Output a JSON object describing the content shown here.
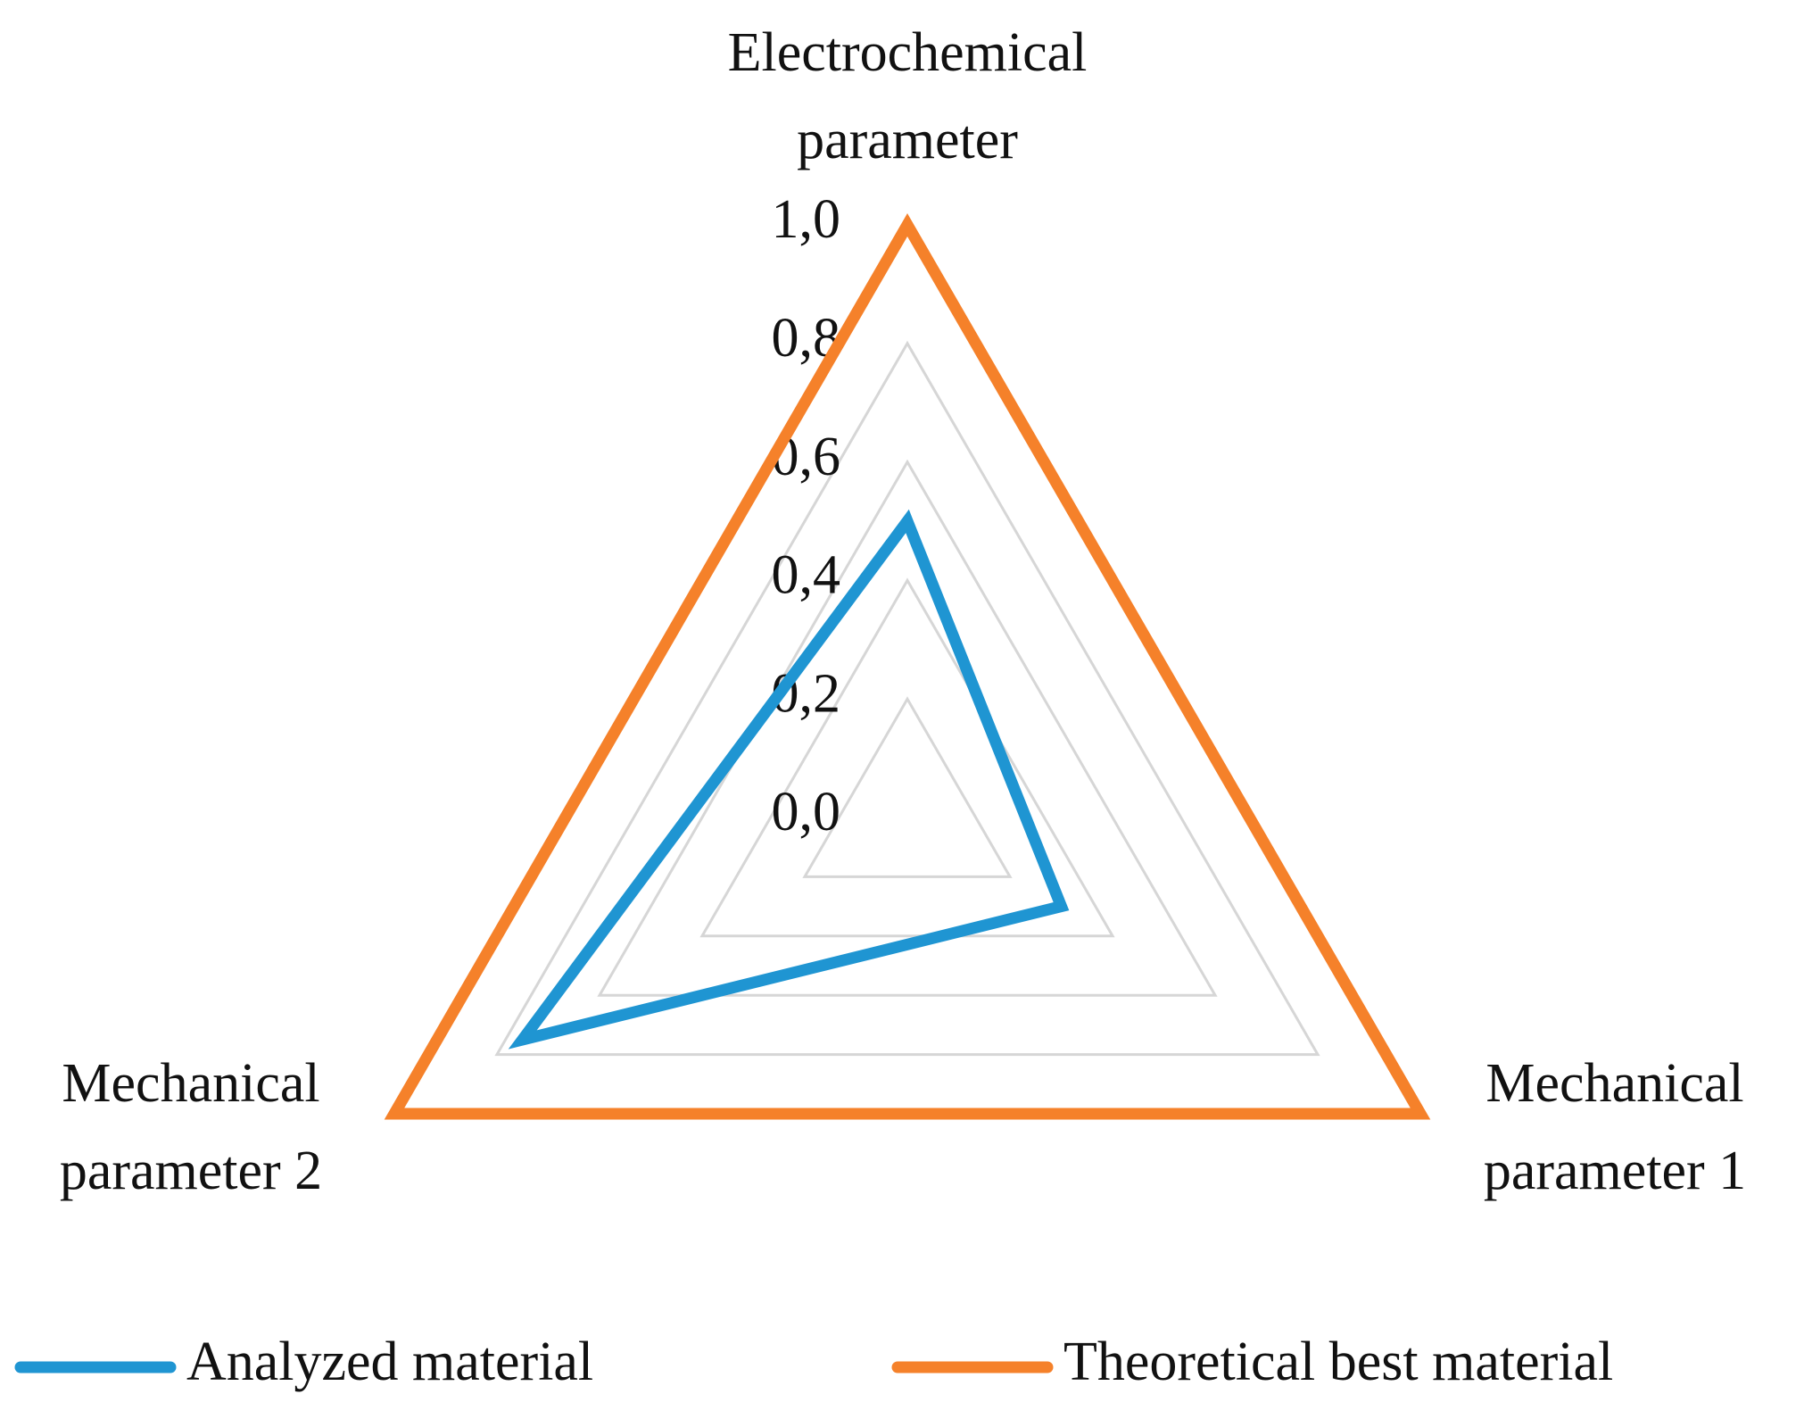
{
  "chart_data": {
    "type": "radar",
    "categories": [
      "Electrochemical parameter",
      "Mechanical parameter 1",
      "Mechanical parameter 2"
    ],
    "series": [
      {
        "name": "Analyzed material",
        "color": "#1f95d2",
        "values": [
          0.5,
          0.3,
          0.75
        ]
      },
      {
        "name": "Theoretical best material",
        "color": "#f5812a",
        "values": [
          1.0,
          1.0,
          1.0
        ]
      }
    ],
    "ylim": [
      0,
      1
    ],
    "yticks": [
      {
        "value": 0,
        "label": "0,0"
      },
      {
        "value": 0.2,
        "label": "0,2"
      },
      {
        "value": 0.4,
        "label": "0,4"
      },
      {
        "value": 0.6,
        "label": "0,6"
      },
      {
        "value": 0.8,
        "label": "0,8"
      },
      {
        "value": 1,
        "label": "1,0"
      }
    ],
    "grid": true,
    "legend": "bottom"
  }
}
